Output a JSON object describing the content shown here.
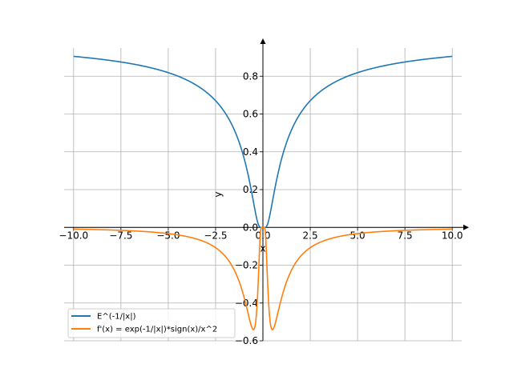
{
  "chart_data": {
    "type": "line",
    "title": "",
    "xlabel": "x",
    "ylabel": "y",
    "xlim": [
      -10.5,
      10.5
    ],
    "ylim": [
      -0.6,
      1.0
    ],
    "grid": true,
    "legend_position": "bottom-left",
    "x_ticks": [
      -10,
      -7.5,
      -5,
      -2.5,
      0,
      2.5,
      5,
      7.5,
      10
    ],
    "x_tick_labels": [
      "−10.0",
      "−7.5",
      "−5.0",
      "−2.5",
      "0.0",
      "2.5",
      "5.0",
      "7.5",
      "10.0"
    ],
    "y_ticks": [
      -0.6,
      -0.4,
      -0.2,
      0.0,
      0.2,
      0.4,
      0.6,
      0.8
    ],
    "y_tick_labels": [
      "−0.6",
      "−0.4",
      "−0.2",
      "0.0",
      "0.2",
      "0.4",
      "0.6",
      "0.8"
    ],
    "x_range": [
      -10,
      10
    ],
    "series": [
      {
        "name": "E^(-1/|x|)",
        "color": "#1f77b4",
        "x": [
          -10,
          -9,
          -8,
          -7,
          -6,
          -5,
          -4,
          -3,
          -2.5,
          -2,
          -1.5,
          -1.2,
          -1,
          -0.8,
          -0.6,
          -0.5,
          -0.4,
          -0.3,
          -0.2,
          -0.1,
          0,
          0.1,
          0.2,
          0.3,
          0.4,
          0.5,
          0.6,
          0.8,
          1,
          1.2,
          1.5,
          2,
          2.5,
          3,
          4,
          5,
          6,
          7,
          8,
          9,
          10
        ],
        "y": [
          0.905,
          0.895,
          0.882,
          0.867,
          0.846,
          0.819,
          0.779,
          0.717,
          0.67,
          0.607,
          0.513,
          0.435,
          0.368,
          0.287,
          0.189,
          0.135,
          0.082,
          0.036,
          0.007,
          5e-05,
          0,
          5e-05,
          0.007,
          0.036,
          0.082,
          0.135,
          0.189,
          0.287,
          0.368,
          0.435,
          0.513,
          0.607,
          0.67,
          0.717,
          0.779,
          0.819,
          0.846,
          0.867,
          0.882,
          0.895,
          0.905
        ]
      },
      {
        "name": "f'(x) = exp(-1/|x|)*sign(x)/x^2",
        "color": "#ff7f0e",
        "x": [
          -10,
          -9,
          -8,
          -7,
          -6,
          -5,
          -4,
          -3,
          -2.5,
          -2,
          -1.5,
          -1.2,
          -1,
          -0.8,
          -0.6,
          -0.5,
          -0.4,
          -0.3,
          -0.2,
          -0.1,
          0,
          0.1,
          0.2,
          0.3,
          0.4,
          0.5,
          0.6,
          0.8,
          1,
          1.2,
          1.5,
          2,
          2.5,
          3,
          4,
          5,
          6,
          7,
          8,
          9,
          10
        ],
        "y": [
          -0.009,
          -0.011,
          -0.014,
          -0.018,
          -0.024,
          -0.033,
          -0.049,
          -0.08,
          -0.107,
          -0.152,
          -0.228,
          -0.302,
          -0.368,
          -0.448,
          -0.525,
          -0.541,
          -0.513,
          -0.396,
          -0.168,
          -0.005,
          0,
          -0.005,
          -0.168,
          -0.396,
          -0.513,
          -0.541,
          -0.525,
          -0.448,
          -0.368,
          -0.302,
          -0.228,
          -0.152,
          -0.107,
          -0.08,
          -0.049,
          -0.033,
          -0.024,
          -0.018,
          -0.014,
          -0.011,
          -0.009
        ]
      }
    ]
  }
}
